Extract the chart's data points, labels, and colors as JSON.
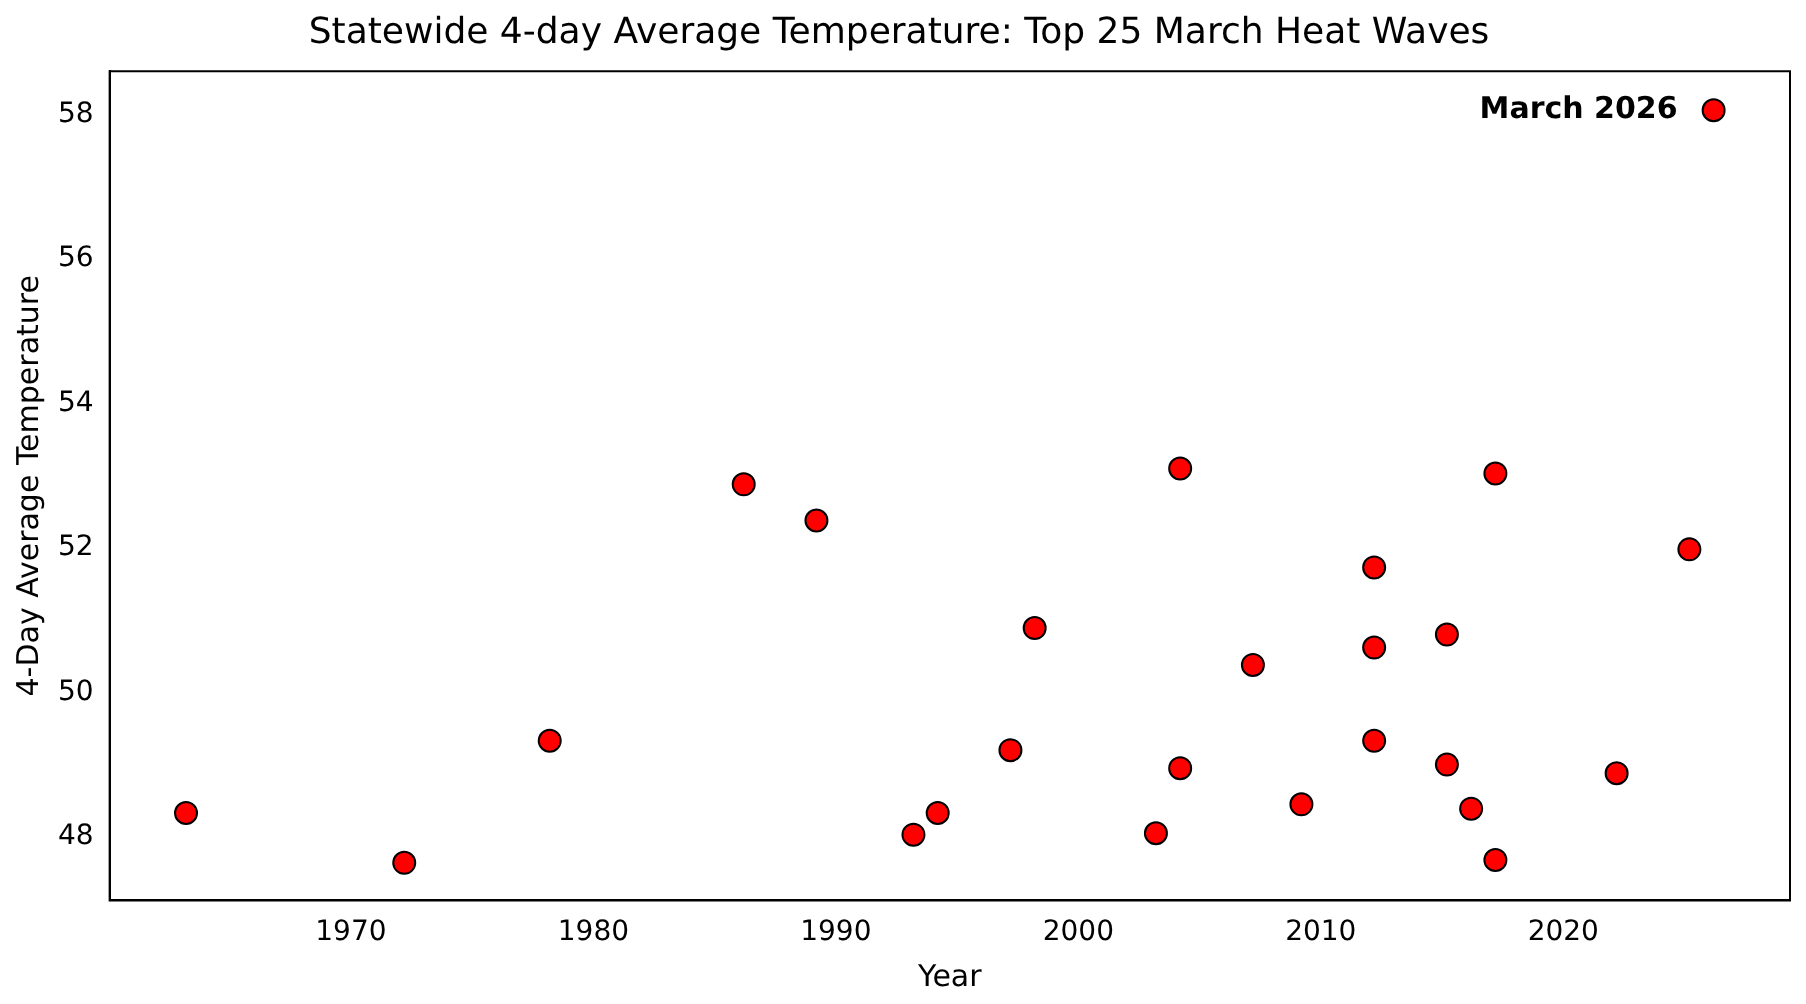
{
  "chart_data": {
    "type": "scatter",
    "title": "Statewide 4-day Average Temperature: Top 25 March Heat Waves",
    "xlabel": "Year",
    "ylabel": "4-Day Average Temperature",
    "x": [
      1963.2,
      1972.2,
      1978.2,
      1986.2,
      1989.2,
      1993.2,
      1994.2,
      1997.2,
      1998.2,
      2003.2,
      2004.2,
      2004.2,
      2007.2,
      2009.2,
      2012.2,
      2012.2,
      2012.2,
      2015.2,
      2015.2,
      2016.2,
      2017.2,
      2017.2,
      2022.2,
      2025.2,
      2026.2
    ],
    "values": [
      48.33,
      47.64,
      49.33,
      52.88,
      52.38,
      48.03,
      48.33,
      49.2,
      50.89,
      48.05,
      53.1,
      48.95,
      50.38,
      48.45,
      51.73,
      50.62,
      49.33,
      50.8,
      49.0,
      48.39,
      53.03,
      47.68,
      48.88,
      51.98,
      58.06
    ],
    "color": "#ff0000",
    "marker": "circle",
    "xlim": [
      1960.05,
      2029.35
    ],
    "xticks": [
      1970,
      1980,
      1990,
      2000,
      2010,
      2020
    ],
    "ylim": [
      47.12,
      58.6
    ],
    "yticks": [
      48,
      50,
      52,
      54,
      56,
      58
    ],
    "grid": false,
    "legend": false,
    "annotations": [
      {
        "text": "March 2026",
        "x": 2026.2,
        "y": 58.06
      }
    ]
  }
}
